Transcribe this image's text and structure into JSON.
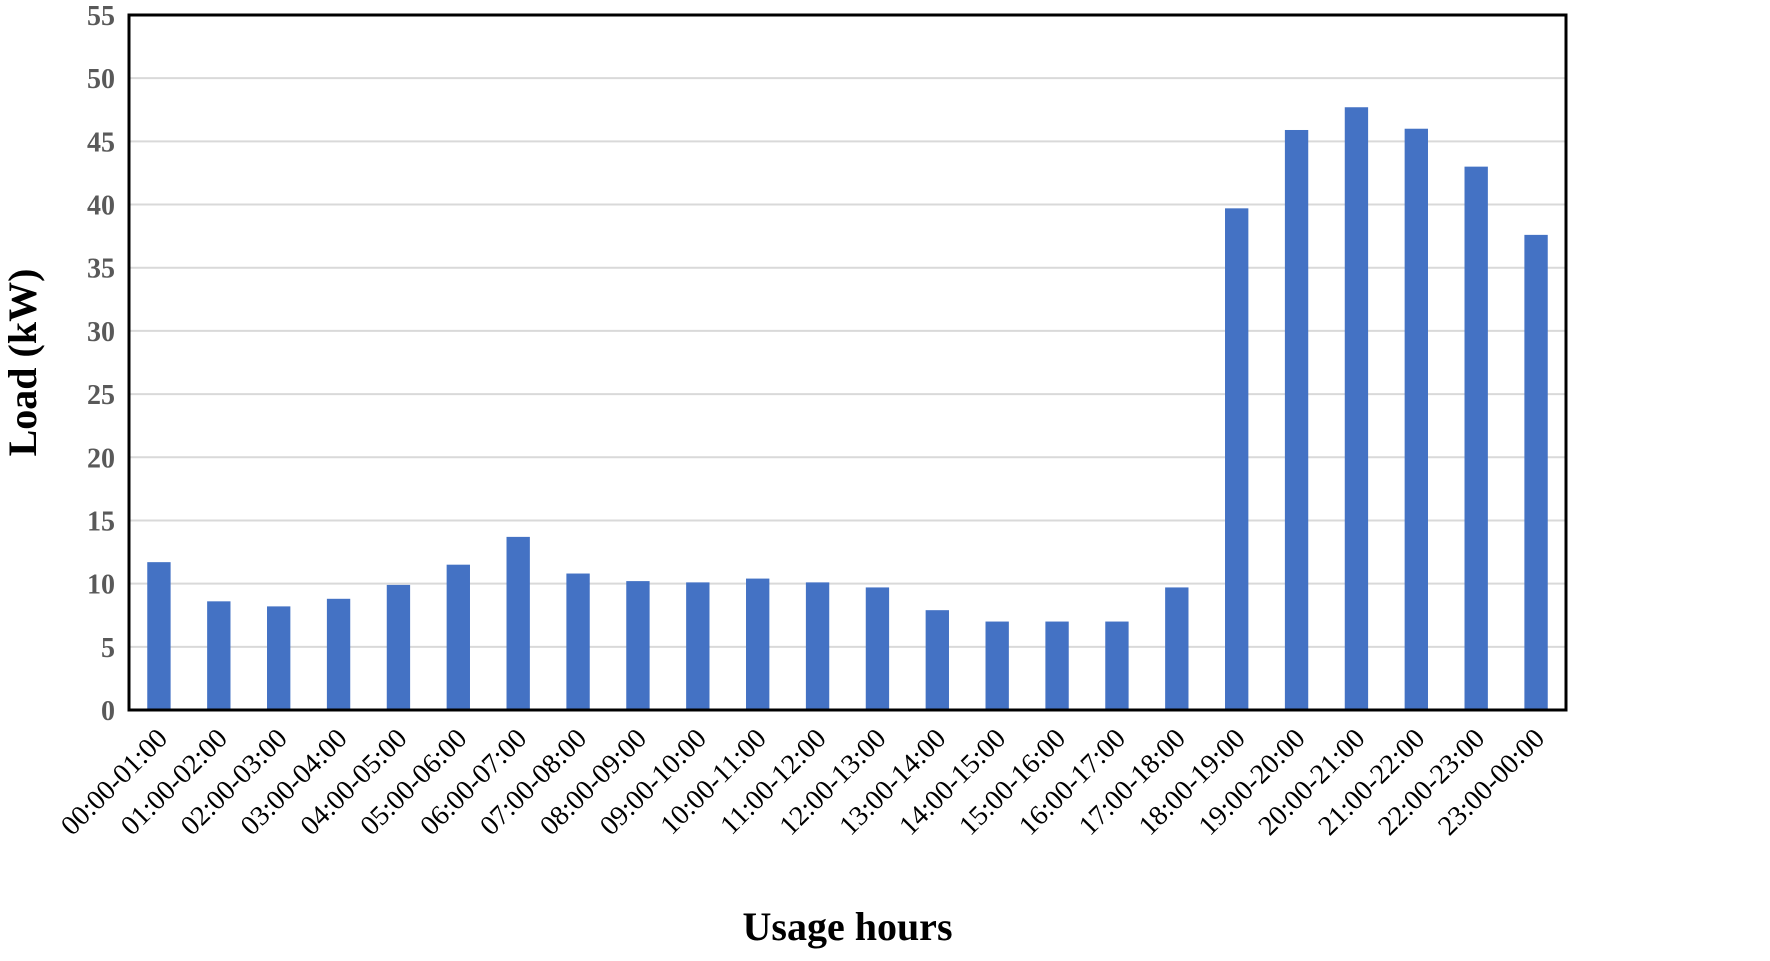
{
  "chart_data": {
    "type": "bar",
    "title": "",
    "xlabel": "Usage hours",
    "ylabel": "Load (kW)",
    "ylim": [
      0,
      55
    ],
    "yticks": [
      "0",
      "5",
      "10",
      "15",
      "20",
      "25",
      "30",
      "35",
      "40",
      "45",
      "50",
      "55"
    ],
    "grid": true,
    "legend": "none",
    "categories": [
      "00:00-01:00",
      "01:00-02:00",
      "02:00-03:00",
      "03:00-04:00",
      "04:00-05:00",
      "05:00-06:00",
      "06:00-07:00",
      "07:00-08:00",
      "08:00-09:00",
      "09:00-10:00",
      "10:00-11:00",
      "11:00-12:00",
      "12:00-13:00",
      "13:00-14:00",
      "14:00-15:00",
      "15:00-16:00",
      "16:00-17:00",
      "17:00-18:00",
      "18:00-19:00",
      "19:00-20:00",
      "20:00-21:00",
      "21:00-22:00",
      "22:00-23:00",
      "23:00-00:00"
    ],
    "values": [
      11.7,
      8.6,
      8.2,
      8.8,
      9.9,
      11.5,
      13.7,
      10.8,
      10.2,
      10.1,
      10.4,
      10.1,
      9.7,
      7.9,
      7.0,
      7.0,
      7.0,
      9.7,
      39.7,
      45.9,
      47.7,
      46.0,
      43.0,
      37.6
    ],
    "colors": {
      "bar": "#4472C4",
      "grid": "#D9D9D9",
      "frame": "#000000"
    }
  }
}
